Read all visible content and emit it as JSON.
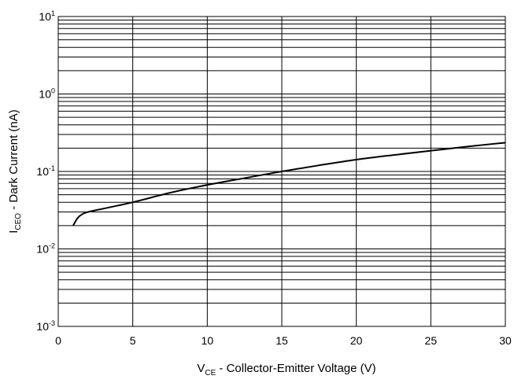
{
  "chart_data": {
    "type": "line",
    "x_axis": {
      "label_main": "V",
      "label_sub": "CE",
      "label_rest": " - Collector-Emitter Voltage (V)",
      "range": [
        0,
        30
      ],
      "ticks": [
        0,
        5,
        10,
        15,
        20,
        25,
        30
      ],
      "tick_labels": [
        "0",
        "5",
        "10",
        "15",
        "20",
        "25",
        "30"
      ]
    },
    "y_axis": {
      "label_main": "I",
      "label_sub": "CEO",
      "label_rest": " - Dark Current (nA)",
      "scale": "log",
      "range": [
        0.001,
        10
      ],
      "decades": [
        {
          "base": "10",
          "exp": "-3"
        },
        {
          "base": "10",
          "exp": "-2"
        },
        {
          "base": "10",
          "exp": "-1"
        },
        {
          "base": "10",
          "exp": "0"
        },
        {
          "base": "10",
          "exp": "1"
        }
      ]
    },
    "grid": true,
    "series": [
      {
        "x": [
          1.0,
          1.3,
          1.6,
          2.0,
          3.0,
          5.0,
          7.5,
          10.0,
          12.5,
          15.0,
          17.5,
          20.0,
          22.5,
          25.0,
          27.5,
          30.0
        ],
        "y": [
          0.02,
          0.025,
          0.028,
          0.03,
          0.033,
          0.04,
          0.053,
          0.067,
          0.082,
          0.1,
          0.12,
          0.142,
          0.163,
          0.185,
          0.21,
          0.235
        ]
      }
    ],
    "colors": {
      "line": "#000000",
      "grid": "#000000",
      "background": "#ffffff"
    }
  }
}
